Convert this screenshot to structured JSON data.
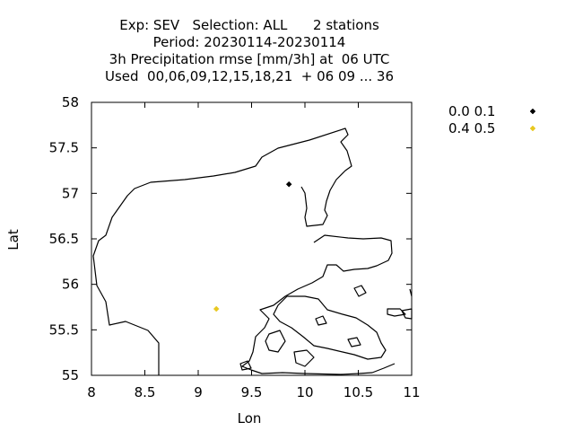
{
  "chart_data": {
    "type": "scatter",
    "title_lines": [
      "Exp: SEV   Selection: ALL      2 stations",
      "Period: 20230114-20230114",
      "3h Precipitation rmse [mm/3h] at  06 UTC",
      "Used  00,06,09,12,15,18,21  + 06 09 ... 36"
    ],
    "xlabel": "Lon",
    "ylabel": "Lat",
    "xlim": [
      8,
      11
    ],
    "ylim": [
      55,
      58
    ],
    "x_ticks": [
      "8",
      "8.5",
      "9",
      "9.5",
      "10",
      "10.5",
      "11"
    ],
    "y_ticks": [
      "55",
      "55.5",
      "56",
      "56.5",
      "57",
      "57.5",
      "58"
    ],
    "legend_position": "right, outside",
    "series": [
      {
        "name": "0.0 0.1",
        "color": "#000000",
        "marker": "diamond",
        "points": [
          {
            "x": 9.85,
            "y": 57.1
          }
        ]
      },
      {
        "name": "0.4 0.5",
        "color": "#e8c820",
        "marker": "diamond",
        "points": [
          {
            "x": 9.17,
            "y": 55.73
          }
        ]
      }
    ]
  }
}
